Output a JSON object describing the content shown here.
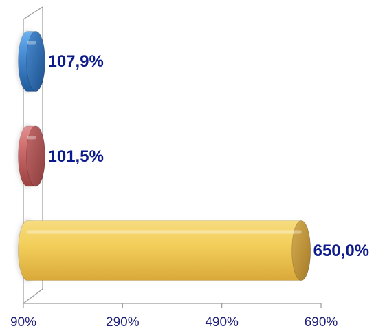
{
  "chart_data": {
    "type": "bar",
    "orientation": "horizontal",
    "style": "3d-cylinder",
    "title": "",
    "xlabel": "",
    "ylabel": "",
    "categories": [
      "",
      "",
      ""
    ],
    "values": [
      107.9,
      101.5,
      650.0
    ],
    "value_labels": [
      "107,9%",
      "101,5%",
      "650,0%"
    ],
    "colors": [
      "#3d7fc8",
      "#c96464",
      "#f2cd52"
    ],
    "xlim": [
      90,
      690
    ],
    "x_ticks": [
      90,
      290,
      490,
      690
    ],
    "x_tick_labels": [
      "90%",
      "290%",
      "490%",
      "690%"
    ],
    "grid": false,
    "legend": "none"
  }
}
